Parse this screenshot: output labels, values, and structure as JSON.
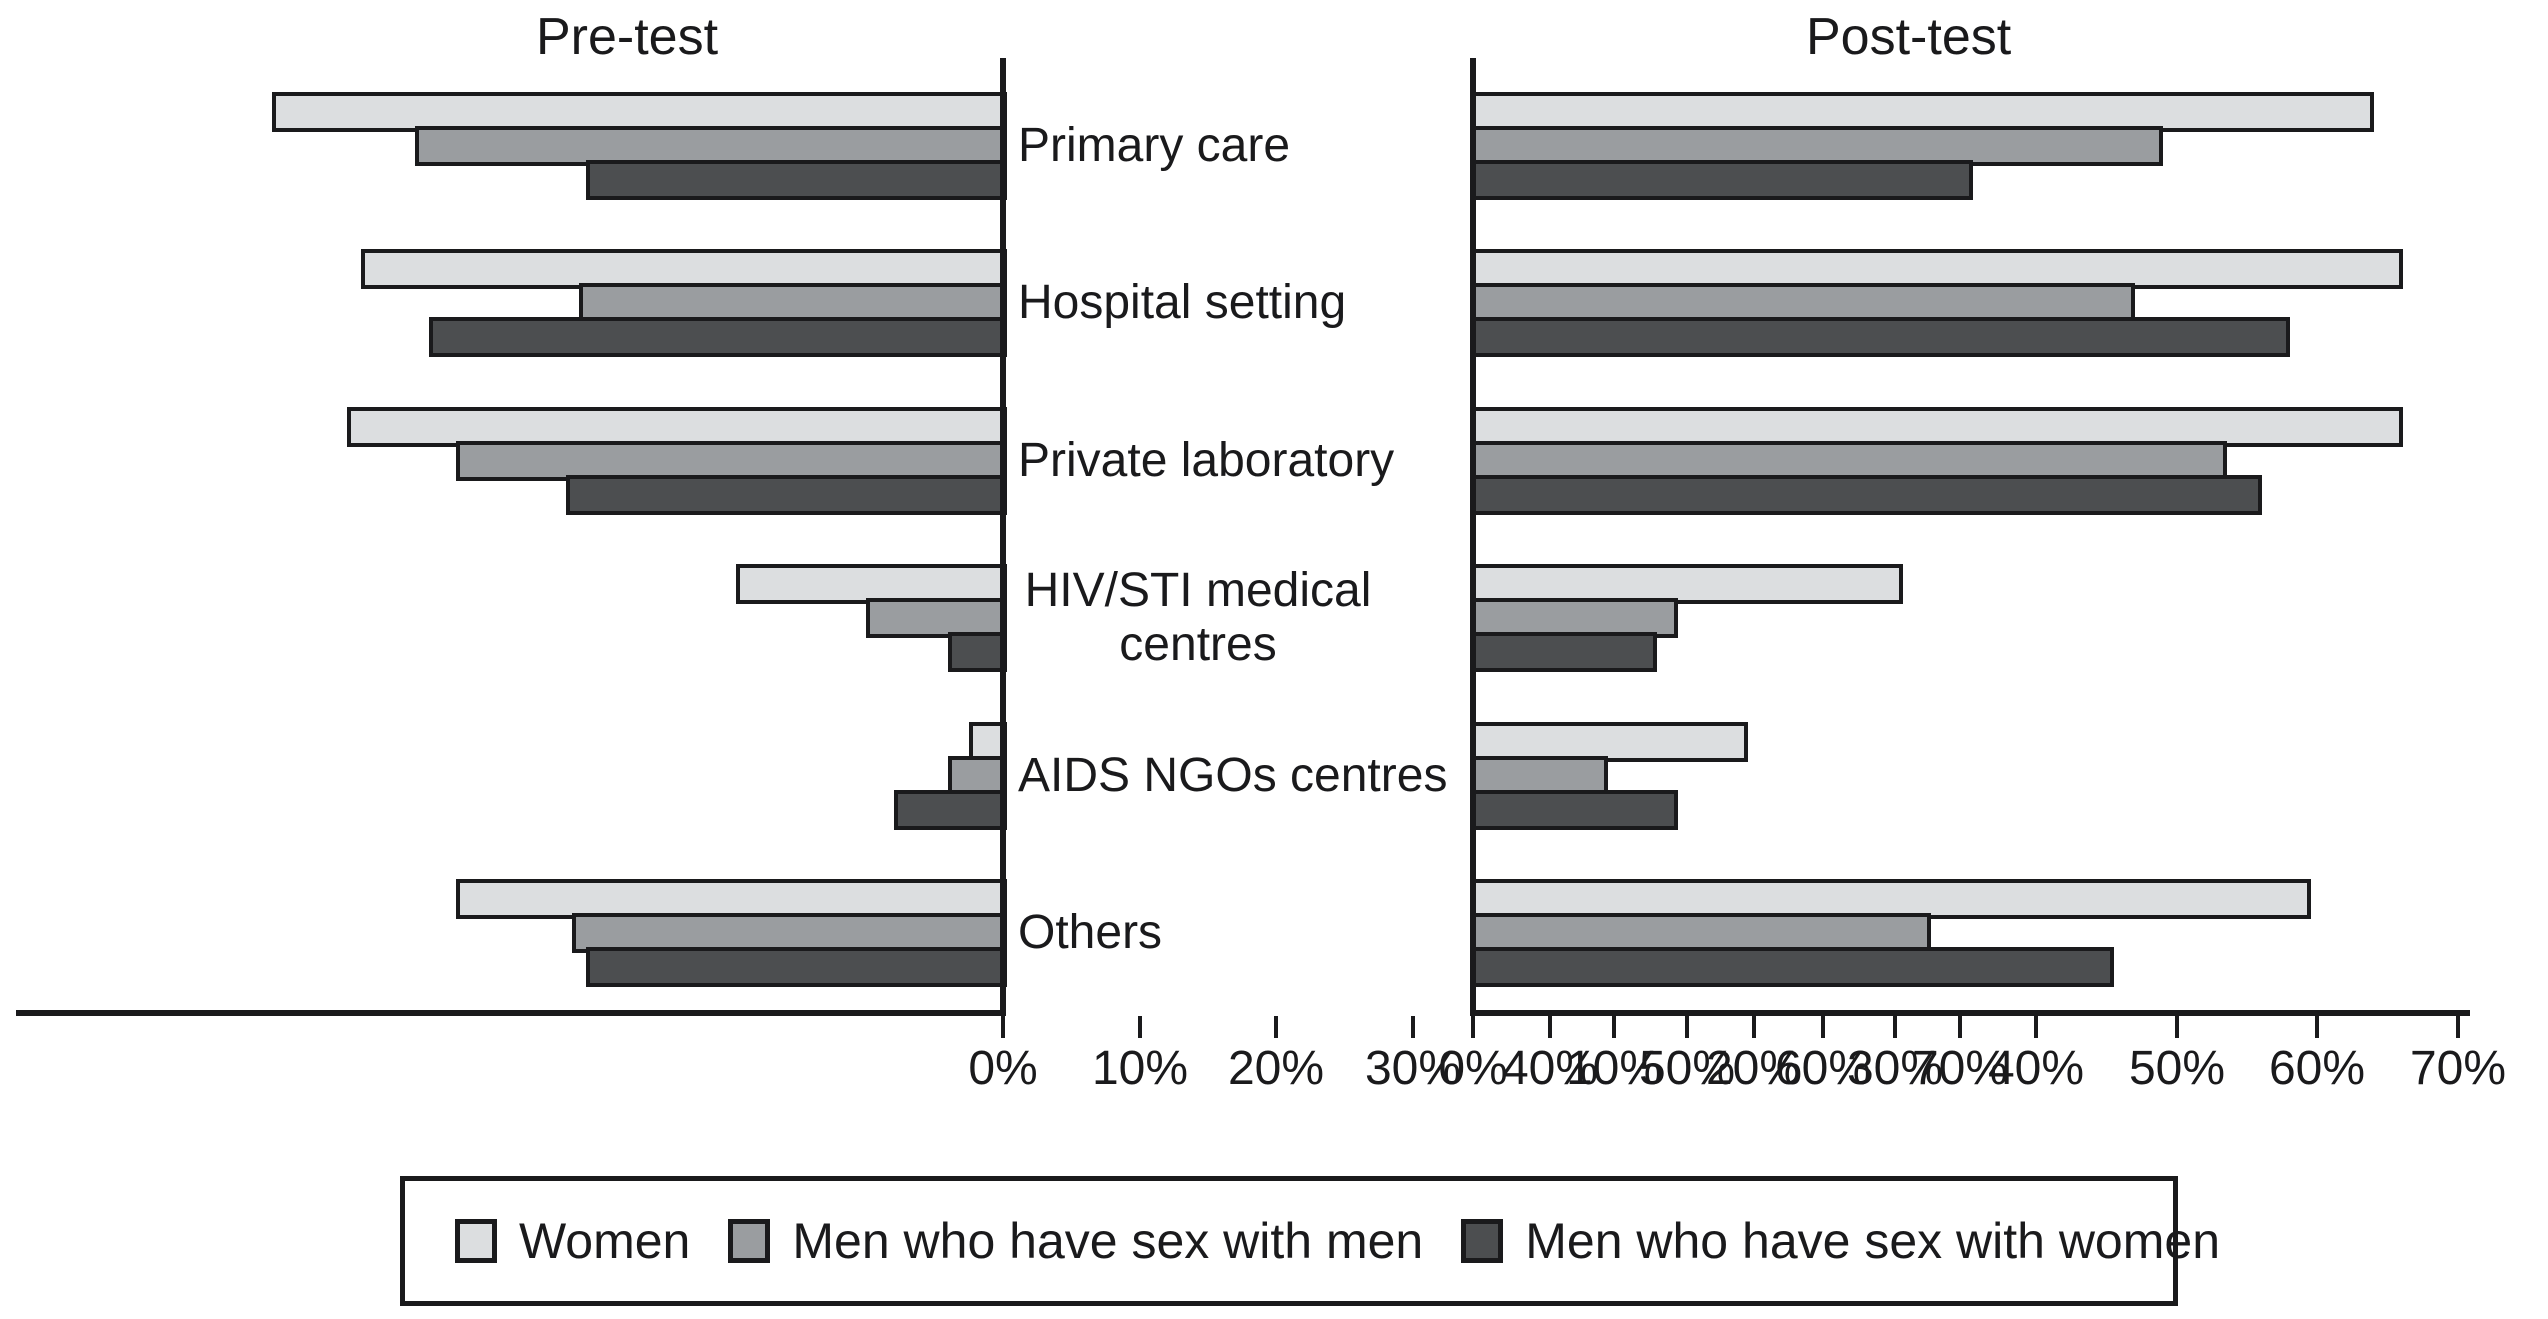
{
  "figure": {
    "titles": {
      "pretest": "Pre-test",
      "posttest": "Post-test"
    }
  },
  "colors": {
    "ink": "#1a1a1c",
    "background": "#ffffff"
  },
  "legend": {
    "items": [
      {
        "label": "Women",
        "color": "#dcdee0"
      },
      {
        "label": "Men who have sex with men",
        "color": "#9a9da0"
      },
      {
        "label": "Men who have sex with women",
        "color": "#4c4e50"
      }
    ]
  },
  "chart_data": [
    {
      "type": "bar",
      "orientation": "horizontal",
      "title": "Pre-test",
      "axis_direction": "right-to-left",
      "categories": [
        "Primary care",
        "Hospital setting",
        "Private laboratory",
        "HIV/STI medical\ncentres",
        "AIDS NGOs centres",
        "Others"
      ],
      "series": [
        {
          "name": "Women",
          "values": [
            53.5,
            47,
            48,
            19.5,
            2.5,
            40
          ]
        },
        {
          "name": "Men who have sex with men",
          "values": [
            43,
            31,
            40,
            10,
            4,
            31.5
          ]
        },
        {
          "name": "Men who have sex with women",
          "values": [
            30.5,
            42,
            32,
            4,
            8,
            30.5
          ]
        }
      ],
      "x_ticks": [
        "70%",
        "60%",
        "50%",
        "40%",
        "30%",
        "20%",
        "10%",
        "0%"
      ],
      "xlim": [
        0,
        70
      ],
      "unit": "percent",
      "grid": false
    },
    {
      "type": "bar",
      "orientation": "horizontal",
      "title": "Post-test",
      "axis_direction": "left-to-right",
      "categories": [
        "Primary care",
        "Hospital setting",
        "Private laboratory",
        "HIV/STI medical\ncentres",
        "AIDS NGOs centres",
        "Others"
      ],
      "series": [
        {
          "name": "Women",
          "values": [
            64,
            66,
            66,
            30.5,
            19.5,
            59.5
          ]
        },
        {
          "name": "Men who have sex with men",
          "values": [
            49,
            47,
            53.5,
            14.5,
            9.5,
            32.5
          ]
        },
        {
          "name": "Men who have sex with women",
          "values": [
            35.5,
            58,
            56,
            13,
            14.5,
            45.5
          ]
        }
      ],
      "x_ticks": [
        "0%",
        "10%",
        "20%",
        "30%",
        "40%",
        "50%",
        "60%",
        "70%"
      ],
      "xlim": [
        0,
        70
      ],
      "unit": "percent",
      "grid": false
    }
  ]
}
